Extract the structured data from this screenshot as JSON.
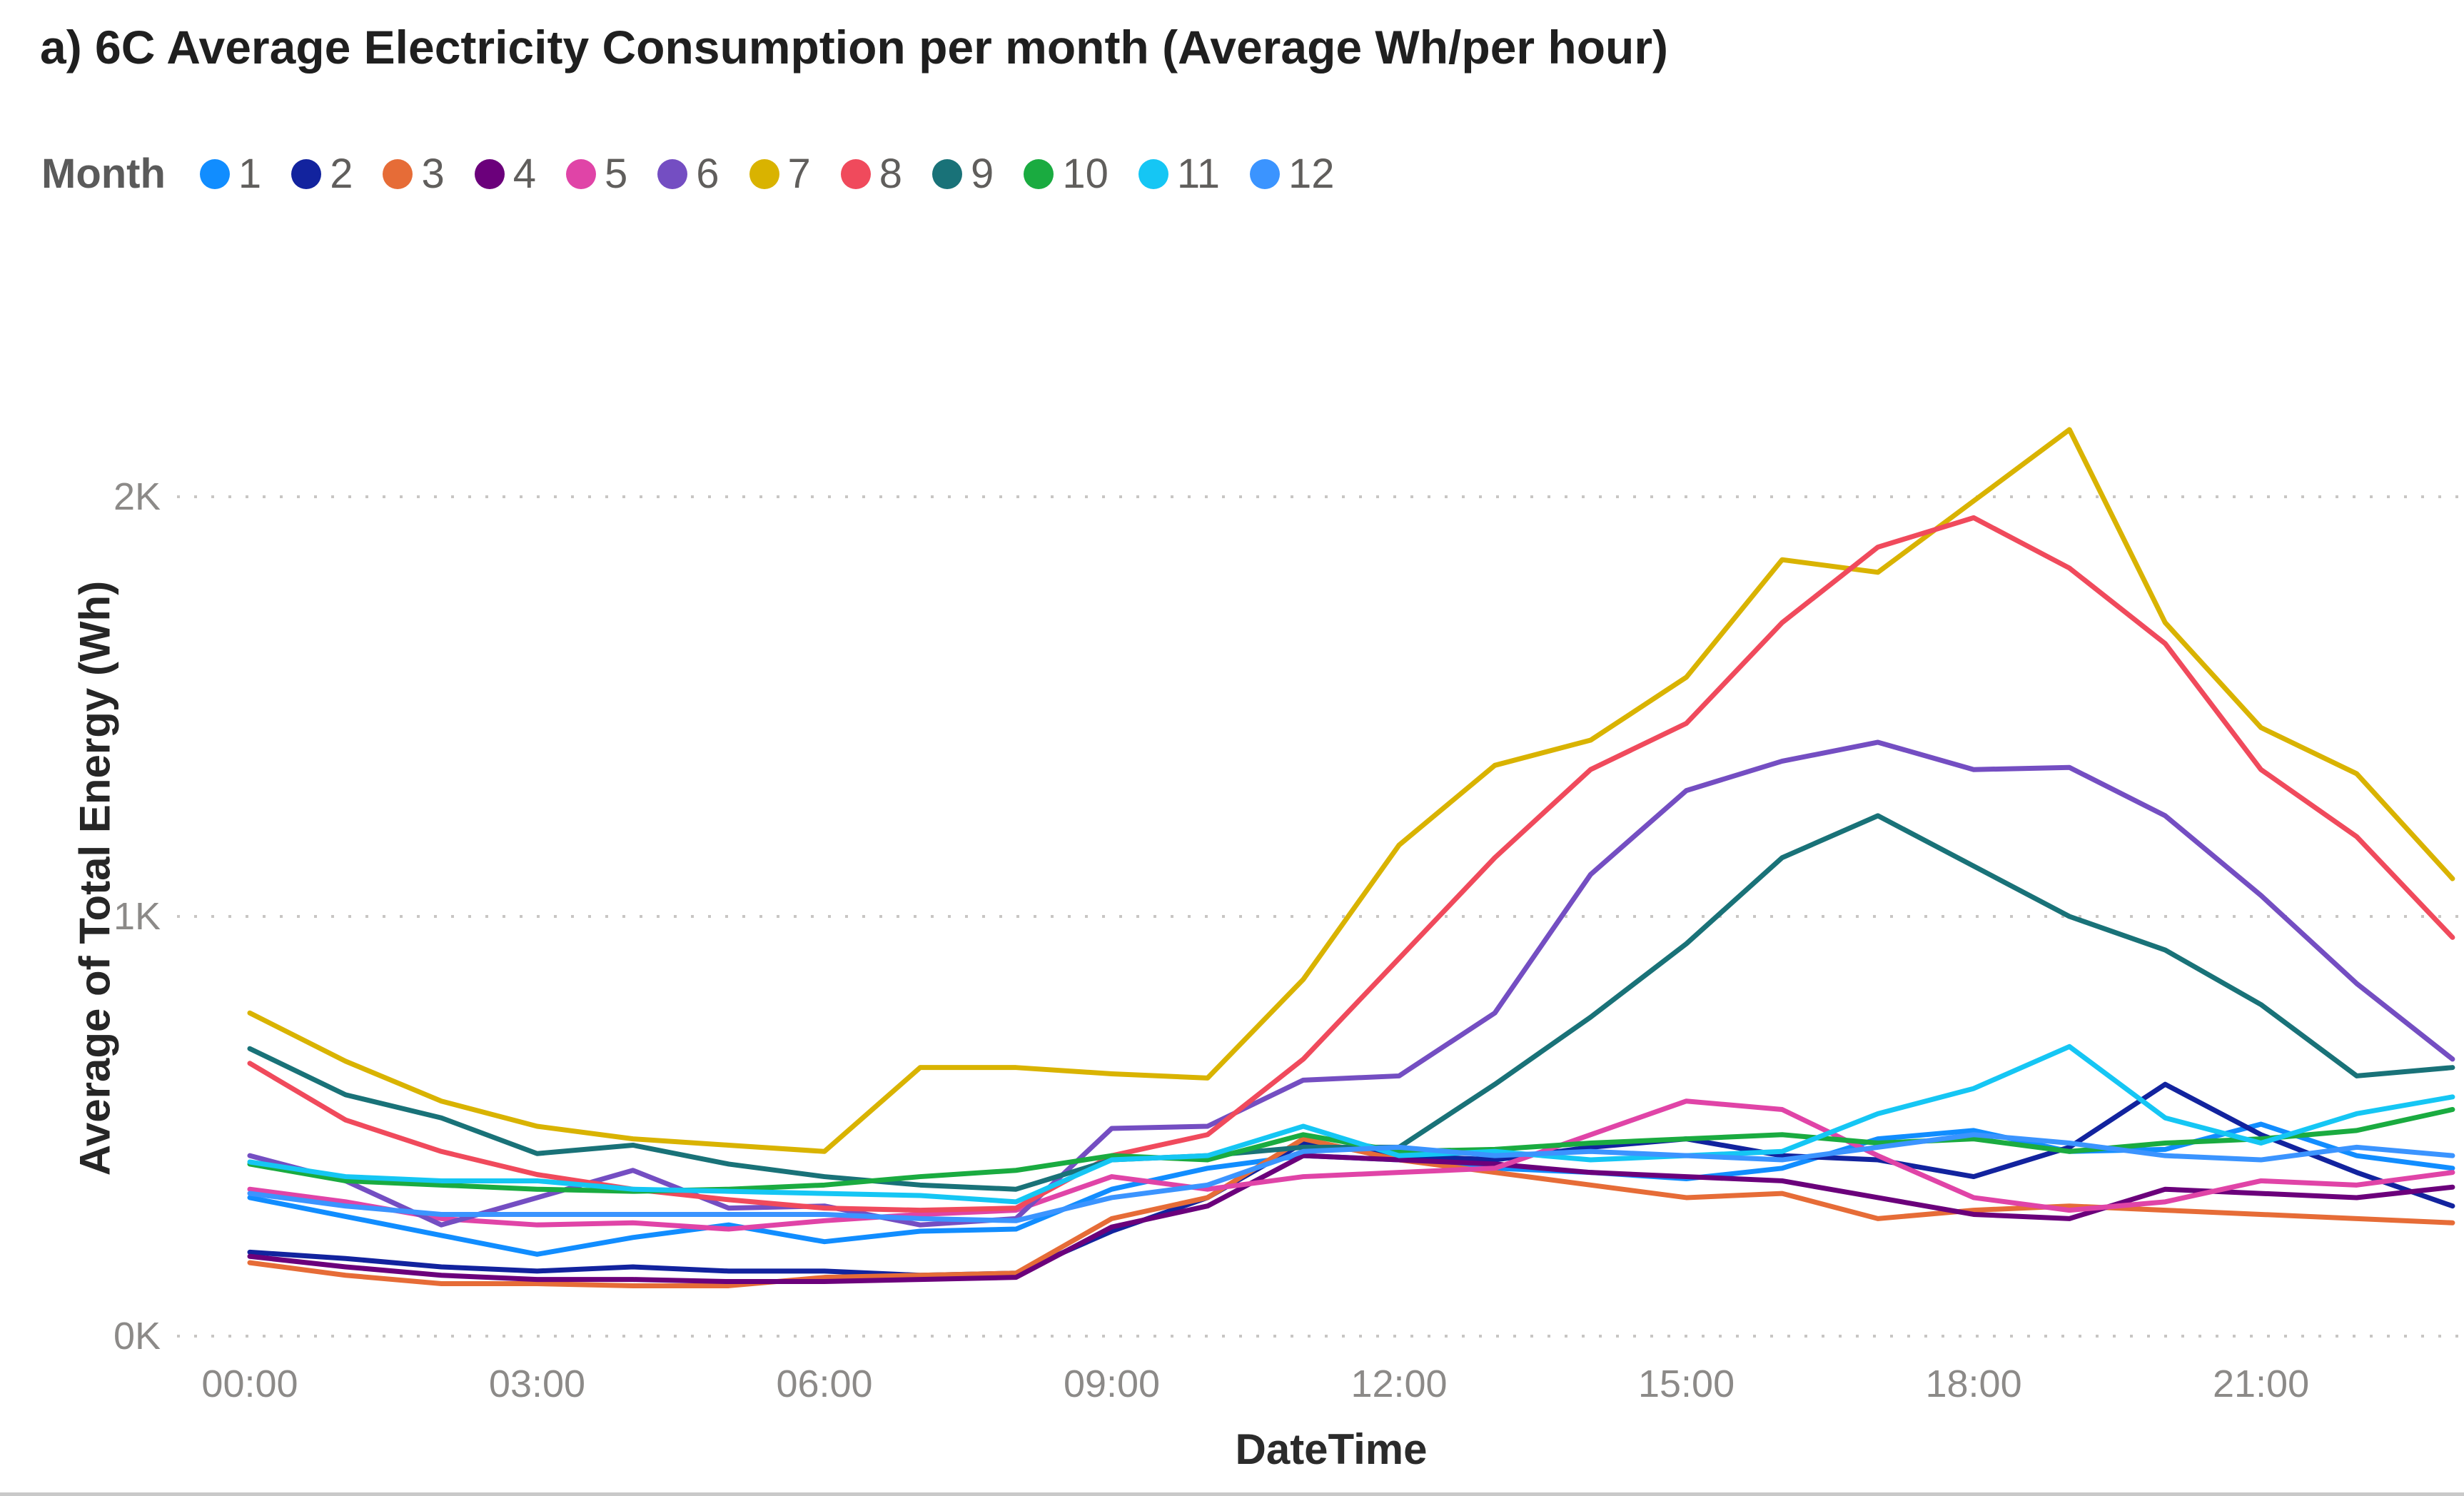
{
  "title": "a) 6C Average Electricity Consumption per month (Average Wh/per hour)",
  "legend": {
    "label": "Month",
    "items": [
      {
        "label": "1",
        "color": "#118DFF"
      },
      {
        "label": "2",
        "color": "#12239E"
      },
      {
        "label": "3",
        "color": "#E66C37"
      },
      {
        "label": "4",
        "color": "#6B007B"
      },
      {
        "label": "5",
        "color": "#E044A7"
      },
      {
        "label": "6",
        "color": "#744EC2"
      },
      {
        "label": "7",
        "color": "#D9B300"
      },
      {
        "label": "8",
        "color": "#F04A5C"
      },
      {
        "label": "9",
        "color": "#197278"
      },
      {
        "label": "10",
        "color": "#1AAB40"
      },
      {
        "label": "11",
        "color": "#15C6F4"
      },
      {
        "label": "12",
        "color": "#3B94FF"
      }
    ]
  },
  "chart_data": {
    "type": "line",
    "title": "a) 6C Average Electricity Consumption per month (Average Wh/per hour)",
    "xlabel": "DateTime",
    "ylabel": "Average of Total Energy (Wh)",
    "x": [
      "00:00",
      "01:00",
      "02:00",
      "03:00",
      "04:00",
      "05:00",
      "06:00",
      "07:00",
      "08:00",
      "09:00",
      "10:00",
      "11:00",
      "12:00",
      "13:00",
      "14:00",
      "15:00",
      "16:00",
      "17:00",
      "18:00",
      "19:00",
      "20:00",
      "21:00",
      "22:00",
      "23:00"
    ],
    "x_tick_labels": [
      "00:00",
      "03:00",
      "06:00",
      "09:00",
      "12:00",
      "15:00",
      "18:00",
      "21:00"
    ],
    "x_tick_hours": [
      0,
      3,
      6,
      9,
      12,
      15,
      18,
      21
    ],
    "y_ticks": [
      0,
      1000,
      2000
    ],
    "y_tick_labels": [
      "0K",
      "1K",
      "2K"
    ],
    "ylim": [
      0,
      2300
    ],
    "grid": "horizontal-dotted",
    "gridline_color": "#c8c6c4",
    "legend_position": "top",
    "series": [
      {
        "name": "1",
        "color": "#118DFF",
        "values": [
          330,
          285,
          240,
          195,
          235,
          265,
          225,
          250,
          255,
          350,
          400,
          430,
          420,
          400,
          390,
          375,
          400,
          470,
          490,
          440,
          445,
          505,
          430,
          400
        ]
      },
      {
        "name": "2",
        "color": "#12239E",
        "values": [
          200,
          185,
          165,
          155,
          165,
          155,
          155,
          145,
          150,
          250,
          330,
          460,
          430,
          420,
          450,
          470,
          430,
          420,
          380,
          450,
          600,
          480,
          390,
          310
        ]
      },
      {
        "name": "3",
        "color": "#E66C37",
        "values": [
          175,
          145,
          125,
          125,
          120,
          120,
          140,
          145,
          150,
          280,
          330,
          470,
          420,
          390,
          360,
          330,
          340,
          280,
          300,
          310,
          300,
          290,
          280,
          270
        ]
      },
      {
        "name": "4",
        "color": "#6B007B",
        "values": [
          190,
          165,
          145,
          135,
          135,
          130,
          130,
          135,
          140,
          260,
          310,
          430,
          420,
          410,
          390,
          380,
          370,
          330,
          290,
          280,
          350,
          340,
          330,
          355
        ]
      },
      {
        "name": "5",
        "color": "#E044A7",
        "values": [
          350,
          320,
          280,
          265,
          270,
          255,
          275,
          290,
          300,
          380,
          350,
          380,
          390,
          400,
          480,
          560,
          540,
          430,
          330,
          300,
          320,
          370,
          360,
          390
        ]
      },
      {
        "name": "6",
        "color": "#744EC2",
        "values": [
          430,
          370,
          265,
          330,
          395,
          305,
          310,
          265,
          280,
          495,
          500,
          610,
          620,
          770,
          1100,
          1300,
          1370,
          1415,
          1350,
          1355,
          1240,
          1050,
          840,
          660
        ]
      },
      {
        "name": "7",
        "color": "#D9B300",
        "values": [
          770,
          655,
          560,
          500,
          470,
          455,
          440,
          640,
          640,
          625,
          615,
          850,
          1170,
          1360,
          1420,
          1570,
          1850,
          1820,
          1990,
          2160,
          1700,
          1450,
          1340,
          1090
        ]
      },
      {
        "name": "8",
        "color": "#F04A5C",
        "values": [
          650,
          515,
          440,
          385,
          350,
          325,
          305,
          300,
          305,
          430,
          480,
          660,
          900,
          1140,
          1350,
          1460,
          1700,
          1880,
          1950,
          1830,
          1650,
          1350,
          1190,
          950
        ]
      },
      {
        "name": "9",
        "color": "#197278",
        "values": [
          685,
          575,
          520,
          435,
          455,
          410,
          380,
          360,
          350,
          420,
          430,
          450,
          450,
          600,
          760,
          935,
          1140,
          1240,
          1120,
          1000,
          920,
          790,
          620,
          640
        ]
      },
      {
        "name": "10",
        "color": "#1AAB40",
        "values": [
          410,
          370,
          360,
          350,
          345,
          350,
          360,
          380,
          395,
          430,
          420,
          480,
          440,
          445,
          460,
          470,
          480,
          460,
          470,
          440,
          460,
          470,
          490,
          540
        ]
      },
      {
        "name": "11",
        "color": "#15C6F4",
        "values": [
          415,
          380,
          370,
          370,
          350,
          345,
          340,
          335,
          320,
          420,
          430,
          500,
          430,
          440,
          420,
          430,
          440,
          530,
          590,
          690,
          520,
          460,
          530,
          570
        ]
      },
      {
        "name": "12",
        "color": "#3B94FF",
        "values": [
          340,
          310,
          290,
          290,
          290,
          290,
          290,
          280,
          275,
          330,
          360,
          440,
          450,
          430,
          440,
          430,
          420,
          450,
          480,
          460,
          430,
          420,
          450,
          430
        ]
      }
    ]
  }
}
